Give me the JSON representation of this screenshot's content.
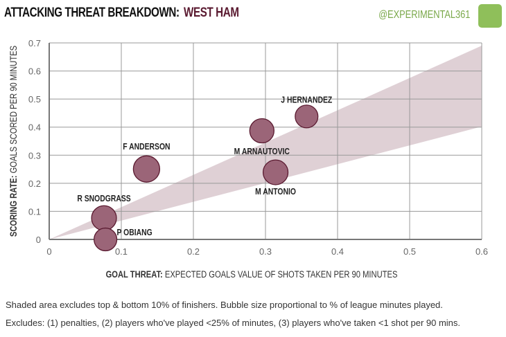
{
  "header": {
    "title": "ATTACKING THREAT BREAKDOWN:",
    "team": "WEST HAM",
    "handle": "@EXPERIMENTAL361"
  },
  "colors": {
    "team": "#5a1a30",
    "bubble_fill": "#9b6578",
    "bubble_stroke": "#5a1a30",
    "band": "#dccbd0",
    "handle": "#7aa84a"
  },
  "chart_data": {
    "type": "scatter",
    "subtype": "bubble",
    "title": "ATTACKING THREAT BREAKDOWN: WEST HAM",
    "xlabel_bold": "GOAL THREAT:",
    "xlabel": "EXPECTED GOALS VALUE OF SHOTS TAKEN PER 90 MINUTES",
    "ylabel_bold": "SCORING RATE:",
    "ylabel": "GOALS SCORED PER 90 MINUTES",
    "xlim": [
      0,
      0.6
    ],
    "ylim": [
      0,
      0.7
    ],
    "xticks": [
      "0",
      "0.1",
      "0.2",
      "0.3",
      "0.4",
      "0.5",
      "0.6"
    ],
    "yticks": [
      "0",
      "0.1",
      "0.2",
      "0.3",
      "0.4",
      "0.5",
      "0.6",
      "0.7"
    ],
    "grid": true,
    "band": {
      "description": "Shaded area excludes top & bottom 10% of finishers",
      "upper_slope": 1.15,
      "lower_slope": 0.67
    },
    "points": [
      {
        "name": "J HERNANDEZ",
        "x": 0.357,
        "y": 0.438,
        "size": 0.4
      },
      {
        "name": "M ARNAUTOVIC",
        "x": 0.295,
        "y": 0.387,
        "size": 0.62
      },
      {
        "name": "M ANTONIO",
        "x": 0.314,
        "y": 0.239,
        "size": 0.72
      },
      {
        "name": "F ANDERSON",
        "x": 0.135,
        "y": 0.251,
        "size": 1.0
      },
      {
        "name": "R SNODGRASS",
        "x": 0.076,
        "y": 0.076,
        "size": 0.72
      },
      {
        "name": "P OBIANG",
        "x": 0.078,
        "y": 0.0,
        "size": 0.4
      }
    ]
  },
  "footer": {
    "line1": "Shaded area excludes top & bottom 10% of finishers. Bubble size proportional to % of league minutes played.",
    "line2": "Excludes: (1) penalties, (2) players who've played <25% of minutes, (3) players who've taken <1 shot per 90 mins."
  }
}
